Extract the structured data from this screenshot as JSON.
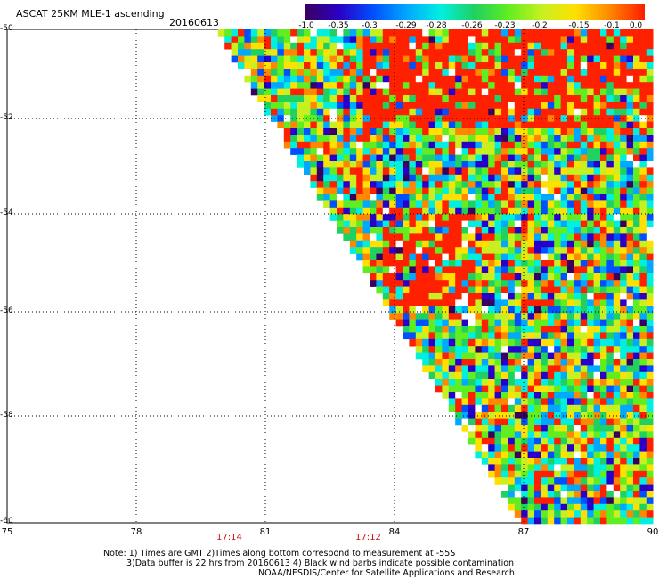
{
  "header": {
    "title": "ASCAT 25KM MLE-1 ascending",
    "date": "20160613"
  },
  "colorbar": {
    "labels": [
      "-1.0",
      "-0.35",
      "-0.3",
      "-0.29",
      "-0.28",
      "-0.26",
      "-0.23",
      "-0.2",
      "-0.15",
      "-0.1",
      "0.0"
    ]
  },
  "axes": {
    "x_ticks": [
      "75",
      "78",
      "81",
      "84",
      "87",
      "90"
    ],
    "y_ticks": [
      "-50",
      "-52",
      "-54",
      "-56",
      "-58",
      "-60"
    ]
  },
  "times": [
    "17:14",
    "17:12"
  ],
  "notes": {
    "line1": "Note: 1) Times are GMT 2)Times along bottom correspond to measurement at -55S",
    "line2": "3)Data buffer is 22 hrs from 20160613 4) Black wind barbs indicate possible contamination",
    "line3": "NOAA/NESDIS/Center for Satellite Applications and Research"
  },
  "colors": {
    "palette": [
      "#3a0060",
      "#2a00c8",
      "#0050ff",
      "#00a8ff",
      "#00f0e0",
      "#20d060",
      "#60ee20",
      "#c8f020",
      "#ffe000",
      "#ff8800",
      "#ff2000"
    ]
  }
}
